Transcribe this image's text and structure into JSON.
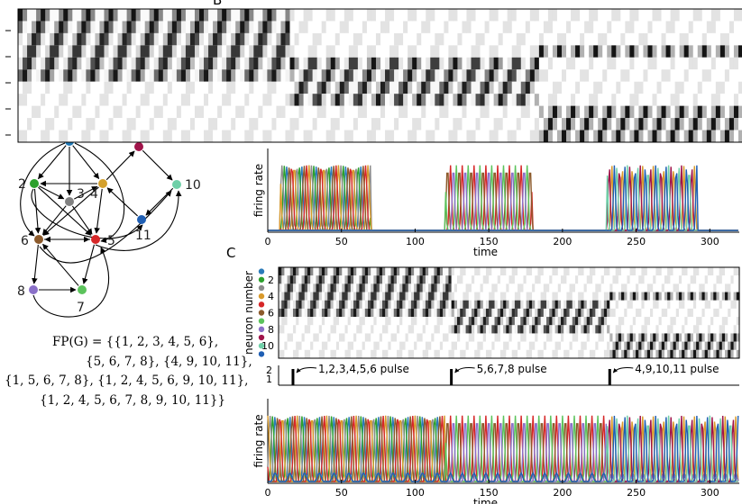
{
  "panels": {
    "b_label": "B",
    "c_label": "C"
  },
  "graph": {
    "nodes": [
      {
        "id": "1",
        "label": "",
        "color": "#1f77b4"
      },
      {
        "id": "2",
        "label": "2",
        "color": "#2ca02c"
      },
      {
        "id": "3",
        "label": "3",
        "color": "#808080"
      },
      {
        "id": "4",
        "label": "4",
        "color": "#d4a02c"
      },
      {
        "id": "5",
        "label": "5",
        "color": "#d62728"
      },
      {
        "id": "6",
        "label": "6",
        "color": "#8c5a2b"
      },
      {
        "id": "7",
        "label": "7",
        "color": "#5cc35c"
      },
      {
        "id": "8",
        "label": "8",
        "color": "#8a70c8"
      },
      {
        "id": "9",
        "label": "",
        "color": "#a0144a"
      },
      {
        "id": "10",
        "label": "10",
        "color": "#6fd0a8"
      },
      {
        "id": "11",
        "label": "11",
        "color": "#1f5fb4"
      }
    ],
    "fixed_points": {
      "line1": "FP(G) = {{1, 2, 3, 4, 5, 6},",
      "line2": "{5, 6, 7, 8}, {4, 9, 10, 11},",
      "line3": "{1, 5, 6, 7, 8}, {1, 2, 4, 5, 6, 9, 10, 11},",
      "line4": "{1, 2, 4, 5, 6, 7, 8, 9, 10, 11}}"
    }
  },
  "colors": {
    "n1": "#2b7bb9",
    "n2": "#2ca02c",
    "n3": "#8c8c8c",
    "n4": "#d99a2b",
    "n5": "#d62728",
    "n6": "#8c5a2b",
    "n7": "#5cc35c",
    "n8": "#8a70c8",
    "n9": "#a0144a",
    "n10": "#6fd0a8",
    "n11": "#1f5fb4"
  },
  "chart_data": [
    {
      "id": "B-raster",
      "type": "heatmap",
      "title": "",
      "ylabel": "",
      "y_ticks": [
        "",
        "",
        "",
        "",
        ""
      ],
      "segments": [
        {
          "t_start": 0,
          "t_end": 120,
          "active_neurons": [
            1,
            2,
            3,
            4,
            5,
            6
          ]
        },
        {
          "t_start": 120,
          "t_end": 230,
          "active_neurons": [
            5,
            6,
            7,
            8
          ]
        },
        {
          "t_start": 230,
          "t_end": 320,
          "active_neurons": [
            4,
            9,
            10,
            11
          ]
        }
      ]
    },
    {
      "id": "B-rates",
      "type": "line",
      "ylabel": "firing rate",
      "xlabel": "time",
      "xlim": [
        0,
        320
      ],
      "x_ticks": [
        "0",
        "50",
        "100",
        "150",
        "200",
        "250",
        "300"
      ],
      "bursts": [
        {
          "t_start": 8,
          "t_end": 70,
          "period": 10,
          "neurons": [
            1,
            2,
            3,
            4,
            5,
            6
          ]
        },
        {
          "t_start": 120,
          "t_end": 180,
          "period": 8,
          "neurons": [
            5,
            6,
            7,
            8
          ]
        },
        {
          "t_start": 230,
          "t_end": 292,
          "period": 7,
          "neurons": [
            4,
            9,
            10,
            11
          ]
        }
      ]
    },
    {
      "id": "C-raster",
      "type": "heatmap",
      "ylabel": "neuron number",
      "y_ticks": [
        "2",
        "4",
        "6",
        "8",
        "10"
      ],
      "segments": [
        {
          "t_start": 0,
          "t_end": 120,
          "active_neurons": [
            1,
            2,
            3,
            4,
            5,
            6
          ]
        },
        {
          "t_start": 120,
          "t_end": 230,
          "active_neurons": [
            5,
            6,
            7,
            8
          ]
        },
        {
          "t_start": 230,
          "t_end": 320,
          "active_neurons": [
            4,
            9,
            10,
            11
          ]
        }
      ]
    },
    {
      "id": "C-pulses",
      "type": "line",
      "y_ticks": [
        "2",
        "1"
      ],
      "pulses": [
        {
          "t": 10,
          "label": "1,2,3,4,5,6 pulse"
        },
        {
          "t": 120,
          "label": "5,6,7,8 pulse"
        },
        {
          "t": 230,
          "label": "4,9,10,11 pulse"
        }
      ]
    },
    {
      "id": "C-rates",
      "type": "line",
      "ylabel": "firing rate",
      "xlabel": "time",
      "xlim": [
        0,
        320
      ],
      "x_ticks": [
        "0",
        "50",
        "100",
        "150",
        "200",
        "250",
        "300"
      ],
      "segments": [
        {
          "t_start": 0,
          "t_end": 120,
          "period": 10,
          "neurons": [
            1,
            2,
            3,
            4,
            5,
            6
          ]
        },
        {
          "t_start": 120,
          "t_end": 230,
          "period": 8,
          "neurons": [
            5,
            6,
            7,
            8
          ]
        },
        {
          "t_start": 230,
          "t_end": 320,
          "period": 7,
          "neurons": [
            4,
            9,
            10,
            11
          ]
        }
      ]
    }
  ]
}
